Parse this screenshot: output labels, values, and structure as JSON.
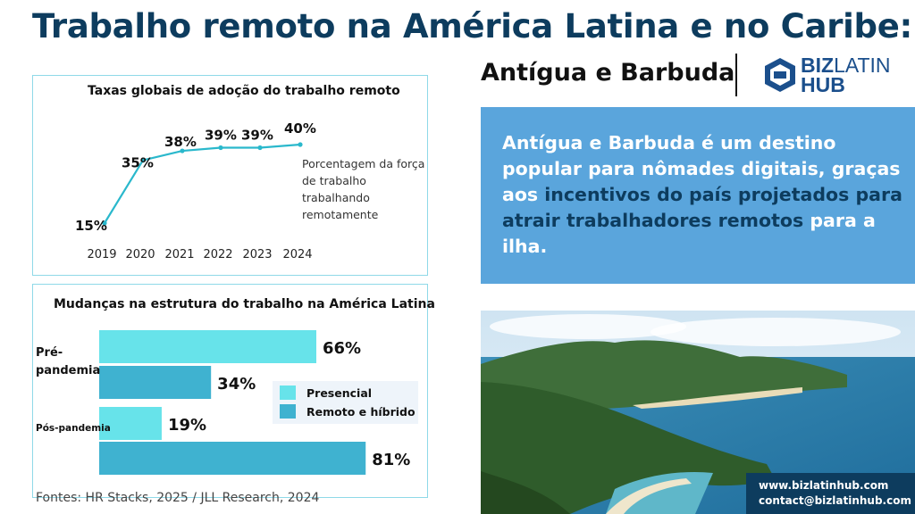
{
  "header": {
    "title": "Trabalho remoto na América Latina e no Caribe:",
    "country": "Antígua e Barbuda",
    "logo_text_bold": "BIZ",
    "logo_text_thin": "LATIN",
    "logo_text_line2": "HUB"
  },
  "info": {
    "text_before": "Antígua e Barbuda é um destino popular para nômades digitais, graças aos ",
    "text_highlight1": "incentivos do país projetados para atrair trabalhadores remotos",
    "text_after": " para a ilha."
  },
  "contact": {
    "website": "www.bizlatinhub.com",
    "email": "contact@bizlatinhub.com"
  },
  "sources": "Fontes: HR Stacks, 2025 / JLL Research, 2024",
  "colors": {
    "navy": "#0d3c5e",
    "line": "#2ab8cc",
    "presencial": "#67e3ea",
    "remoto": "#3fb2d0",
    "info_bg": "#5aa5dc"
  },
  "chart_data": [
    {
      "type": "line",
      "title": "Taxas globais de adoção do trabalho remoto",
      "x": [
        "2019",
        "2020",
        "2021",
        "2022",
        "2023",
        "2024"
      ],
      "values": [
        15,
        35,
        38,
        39,
        39,
        40
      ],
      "data_labels": [
        "15%",
        "35%",
        "38%",
        "39%",
        "39%",
        "40%"
      ],
      "annotation": "Porcentagem da força de trabalho trabalhando remotamente",
      "ylim": [
        0,
        45
      ],
      "grid": false
    },
    {
      "type": "bar",
      "orientation": "horizontal",
      "title": "Mudanças na estrutura do trabalho na América Latina",
      "categories": [
        "Pré-pandemia",
        "Pós-pandemia"
      ],
      "series": [
        {
          "name": "Presencial",
          "values": [
            66,
            19
          ],
          "labels": [
            "66%",
            "19%"
          ]
        },
        {
          "name": "Remoto e híbrido",
          "values": [
            34,
            81
          ],
          "labels": [
            "34%",
            "81%"
          ]
        }
      ],
      "xlim": [
        0,
        100
      ],
      "legend": "right",
      "grid": false
    }
  ]
}
